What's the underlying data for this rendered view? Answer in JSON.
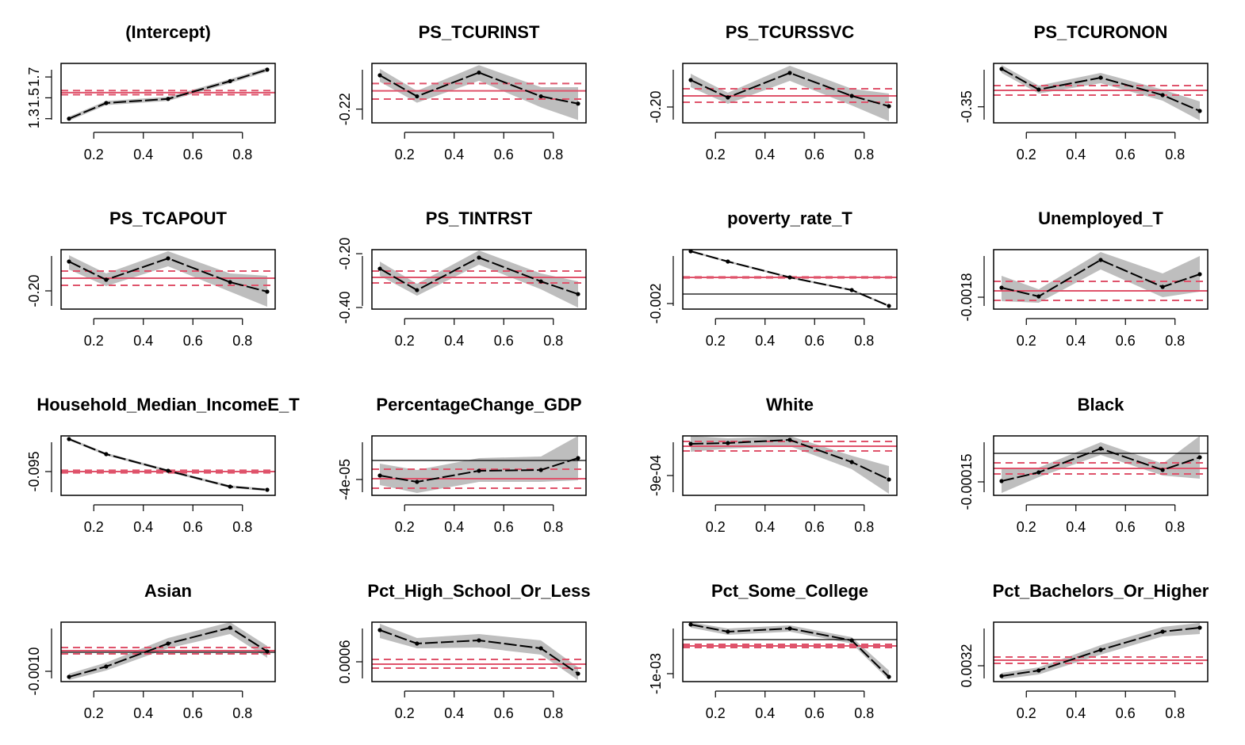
{
  "chart_data": [
    {
      "type": "line",
      "title": "(Intercept)",
      "x": [
        0.1,
        0.25,
        0.5,
        0.75,
        0.9
      ],
      "xlim": [
        0.068,
        0.932
      ],
      "xticks": [
        0.2,
        0.4,
        0.6,
        0.8
      ],
      "ylim": [
        1.26,
        1.83
      ],
      "yticks": [
        1.3,
        1.5,
        1.7
      ],
      "values": [
        1.3,
        1.45,
        1.49,
        1.66,
        1.77
      ],
      "lower": [
        1.28,
        1.43,
        1.47,
        1.64,
        1.75
      ],
      "upper": [
        1.32,
        1.47,
        1.51,
        1.68,
        1.79
      ],
      "ols": 1.55,
      "ols_lower": 1.53,
      "ols_upper": 1.57,
      "color": "#000000",
      "band_color": "#bebebe",
      "ols_color": "#df536b"
    },
    {
      "type": "line",
      "title": "PS_TCURINST",
      "x": [
        0.1,
        0.25,
        0.5,
        0.75,
        0.9
      ],
      "xlim": [
        0.068,
        0.932
      ],
      "xticks": [
        0.2,
        0.4,
        0.6,
        0.8
      ],
      "ylim": [
        -0.235,
        -0.17
      ],
      "yticks": [
        -0.22
      ],
      "values": [
        -0.183,
        -0.206,
        -0.18,
        -0.206,
        -0.214
      ],
      "lower": [
        -0.19,
        -0.213,
        -0.189,
        -0.218,
        -0.232
      ],
      "upper": [
        -0.176,
        -0.2,
        -0.172,
        -0.196,
        -0.196
      ],
      "ols": -0.2,
      "ols_lower": -0.209,
      "ols_upper": -0.192,
      "color": "#000000",
      "band_color": "#bebebe",
      "ols_color": "#df536b"
    },
    {
      "type": "line",
      "title": "PS_TCURSSVC",
      "x": [
        0.1,
        0.25,
        0.5,
        0.75,
        0.9
      ],
      "xlim": [
        0.068,
        0.932
      ],
      "xticks": [
        0.2,
        0.4,
        0.6,
        0.8
      ],
      "ylim": [
        -0.216,
        -0.156
      ],
      "yticks": [
        {
          "value": -0.2,
          "label": "-0.20"
        }
      ],
      "values": [
        -0.1728,
        -0.1904,
        -0.1656,
        -0.1888,
        -0.1992
      ],
      "lower": [
        -0.18,
        -0.1968,
        -0.1736,
        -0.1984,
        -0.2144
      ],
      "upper": [
        -0.1664,
        -0.1856,
        -0.1584,
        -0.1816,
        -0.1864
      ],
      "ols": -0.1888,
      "ols_lower": -0.1952,
      "ols_upper": -0.1816,
      "color": "#000000",
      "band_color": "#bebebe",
      "ols_color": "#df536b"
    },
    {
      "type": "line",
      "title": "PS_TCURONON",
      "x": [
        0.1,
        0.25,
        0.5,
        0.75,
        0.9
      ],
      "xlim": [
        0.068,
        0.932
      ],
      "xticks": [
        0.2,
        0.4,
        0.6,
        0.8
      ],
      "ylim": [
        -0.377,
        -0.277
      ],
      "yticks": [
        -0.35
      ],
      "values": [
        -0.2863,
        -0.321,
        -0.301,
        -0.3303,
        -0.357
      ],
      "lower": [
        -0.293,
        -0.3277,
        -0.3103,
        -0.3397,
        -0.373
      ],
      "upper": [
        -0.2797,
        -0.3143,
        -0.293,
        -0.321,
        -0.341
      ],
      "ols": -0.3223,
      "ols_lower": -0.3303,
      "ols_upper": -0.3143,
      "color": "#000000",
      "band_color": "#bebebe",
      "ols_color": "#df536b"
    },
    {
      "type": "line",
      "title": "PS_TCAPOUT",
      "x": [
        0.1,
        0.25,
        0.5,
        0.75,
        0.9
      ],
      "xlim": [
        0.068,
        0.932
      ],
      "xticks": [
        0.2,
        0.4,
        0.6,
        0.8
      ],
      "ylim": [
        -0.2184,
        -0.1584
      ],
      "yticks": [
        {
          "value": -0.2,
          "label": "-0.20"
        }
      ],
      "values": [
        -0.1704,
        -0.1888,
        -0.1672,
        -0.1912,
        -0.2008
      ],
      "lower": [
        -0.1784,
        -0.1952,
        -0.1752,
        -0.2008,
        -0.216
      ],
      "upper": [
        -0.164,
        -0.1824,
        -0.16,
        -0.1824,
        -0.1848
      ],
      "ols": -0.1872,
      "ols_lower": -0.1944,
      "ols_upper": -0.18,
      "color": "#000000",
      "band_color": "#bebebe",
      "ols_color": "#df536b"
    },
    {
      "type": "line",
      "title": "PS_TINTRST",
      "x": [
        0.1,
        0.25,
        0.5,
        0.75,
        0.9
      ],
      "xlim": [
        0.068,
        0.932
      ],
      "xticks": [
        0.2,
        0.4,
        0.6,
        0.8
      ],
      "ylim": [
        -0.406,
        -0.185
      ],
      "yticks": [
        {
          "value": -0.2,
          "label": "-0.20"
        },
        {
          "value": -0.4,
          "label": "-0.40"
        }
      ],
      "values": [
        -0.2558,
        -0.3355,
        -0.2145,
        -0.303,
        -0.3502
      ],
      "lower": [
        -0.2824,
        -0.3561,
        -0.241,
        -0.3325,
        -0.4004
      ],
      "upper": [
        -0.2293,
        -0.3119,
        -0.188,
        -0.2735,
        -0.303
      ],
      "ols": -0.2883,
      "ols_lower": -0.3089,
      "ols_upper": -0.2647,
      "color": "#000000",
      "band_color": "#bebebe",
      "ols_color": "#df536b"
    },
    {
      "type": "line",
      "title": "poverty_rate_T",
      "x": [
        0.1,
        0.25,
        0.5,
        0.75,
        0.9
      ],
      "xlim": [
        0.068,
        0.932
      ],
      "xticks": [
        0.2,
        0.4,
        0.6,
        0.8
      ],
      "ylim": [
        -0.00317,
        0.00933
      ],
      "yticks": [
        -0.002
      ],
      "values": [
        0.009,
        0.00683,
        0.0035,
        0.00083,
        -0.0025
      ],
      "lower": [
        0.0088,
        0.00663,
        0.0033,
        0.00063,
        -0.0027
      ],
      "upper": [
        0.0092,
        0.00703,
        0.0037,
        0.00103,
        -0.0023
      ],
      "ols": 0.0035,
      "ols_lower": 0.0034,
      "ols_upper": 0.0036,
      "color": "#000000",
      "band_color": "#bebebe",
      "ols_color": "#df536b"
    },
    {
      "type": "line",
      "title": "Unemployed_T",
      "x": [
        0.1,
        0.25,
        0.5,
        0.75,
        0.9
      ],
      "xlim": [
        0.068,
        0.932
      ],
      "xticks": [
        0.2,
        0.4,
        0.6,
        0.8
      ],
      "ylim": [
        -0.0019875,
        -0.00105
      ],
      "yticks": [
        -0.0018
      ],
      "values": [
        -0.00165,
        -0.0017875,
        -0.0012125,
        -0.0016375,
        -0.0014375
      ],
      "lower": [
        -0.0018625,
        -0.0018875,
        -0.0013625,
        -0.0018,
        -0.0017125
      ],
      "upper": [
        -0.0014625,
        -0.001675,
        -0.0010875,
        -0.001425,
        -0.00115
      ],
      "ols": -0.0017,
      "ols_lower": -0.00185,
      "ols_upper": -0.00155,
      "color": "#000000",
      "band_color": "#bebebe",
      "ols_color": "#df536b"
    },
    {
      "type": "line",
      "title": "Household_Median_IncomeE_T",
      "x": [
        0.1,
        0.25,
        0.5,
        0.75,
        0.9
      ],
      "xlim": [
        0.068,
        0.932
      ],
      "xticks": [
        0.2,
        0.4,
        0.6,
        0.8
      ],
      "ylim": [
        -0.11,
        -0.0725
      ],
      "yticks": [
        -0.095
      ],
      "values": [
        -0.0745,
        -0.084,
        -0.0945,
        -0.1045,
        -0.1065
      ],
      "lower": [
        -0.0753,
        -0.0848,
        -0.0953,
        -0.1053,
        -0.1073
      ],
      "upper": [
        -0.0737,
        -0.0832,
        -0.0937,
        -0.1037,
        -0.1057
      ],
      "ols": -0.095,
      "ols_lower": -0.0958,
      "ols_upper": -0.0942,
      "color": "#000000",
      "band_color": "#bebebe",
      "ols_color": "#df536b"
    },
    {
      "type": "line",
      "title": "PercentageChange_GDP",
      "x": [
        0.1,
        0.25,
        0.5,
        0.75,
        0.9
      ],
      "xlim": [
        0.068,
        0.932
      ],
      "xticks": [
        0.2,
        0.4,
        0.6,
        0.8
      ],
      "ylim": [
        -7.333e-05,
        5.167e-05
      ],
      "yticks": [
        {
          "value": -4e-05,
          "label": "-4e-05"
        }
      ],
      "values": [
        -3.167e-05,
        -4.5e-05,
        -2.167e-05,
        -2e-05,
        5e-06
      ],
      "lower": [
        -5.167e-05,
        -6.833e-05,
        -4.5e-05,
        -4.5e-05,
        -4.167e-05
      ],
      "upper": [
        -6.67e-06,
        -2e-05,
        5e-06,
        8.33e-06,
        5.167e-05
      ],
      "ols": -3.833e-05,
      "ols_lower": -5.833e-05,
      "ols_upper": -1.833e-05,
      "color": "#000000",
      "band_color": "#bebebe",
      "ols_color": "#df536b"
    },
    {
      "type": "line",
      "title": "White",
      "x": [
        0.1,
        0.25,
        0.5,
        0.75,
        0.9
      ],
      "xlim": [
        0.068,
        0.932
      ],
      "xticks": [
        0.2,
        0.4,
        0.6,
        0.8
      ],
      "ylim": [
        -0.0010389,
        -0.0006222
      ],
      "yticks": [
        {
          "value": -0.0009,
          "label": "-9e-04"
        }
      ],
      "values": [
        -0.0006778,
        -0.0006722,
        -0.00065,
        -0.0008056,
        -0.0009278
      ],
      "lower": [
        -0.0007333,
        -0.0007111,
        -0.0006944,
        -0.0008556,
        -0.0010278
      ],
      "upper": [
        -0.0006222,
        -0.0006389,
        -0.0006222,
        -0.0007611,
        -0.0008333
      ],
      "ols": -0.0006944,
      "ols_lower": -0.0007278,
      "ols_upper": -0.0006611,
      "color": "#000000",
      "band_color": "#bebebe",
      "ols_color": "#df536b"
    },
    {
      "type": "line",
      "title": "Black",
      "x": [
        0.1,
        0.25,
        0.5,
        0.75,
        0.9
      ],
      "xlim": [
        0.068,
        0.932
      ],
      "xticks": [
        0.2,
        0.4,
        0.6,
        0.8
      ],
      "ylim": [
        -0.00022083,
        9.167e-05
      ],
      "yticks": [
        -0.00015
      ],
      "values": [
        -0.00014583,
        -0.0001,
        2.5e-05,
        -8.75e-05,
        -2.083e-05
      ],
      "lower": [
        -0.00020833,
        -0.000125,
        -8.33e-06,
        -0.00011667,
        -0.00013333
      ],
      "upper": [
        -7.5e-05,
        -7.5e-05,
        5.833e-05,
        -5.417e-05,
        9.167e-05
      ],
      "ols": -7.917e-05,
      "ols_lower": -0.00010833,
      "ols_upper": -5e-05,
      "color": "#000000",
      "band_color": "#bebebe",
      "ols_color": "#df536b"
    },
    {
      "type": "line",
      "title": "Asian",
      "x": [
        0.1,
        0.25,
        0.5,
        0.75,
        0.9
      ],
      "xlim": [
        0.068,
        0.932
      ],
      "xticks": [
        0.2,
        0.4,
        0.6,
        0.8
      ],
      "ylim": [
        -0.0015417,
        0.0015833
      ],
      "yticks": [
        {
          "value": -0.001,
          "label": "-0.0010"
        }
      ],
      "values": [
        -0.0012917,
        -0.00075,
        0.0004583,
        0.0012917,
        4.17e-05
      ],
      "lower": [
        -0.0014583,
        -0.0009583,
        0.0002083,
        0.0009583,
        -0.0002917
      ],
      "upper": [
        -0.001125,
        -0.0005417,
        0.00075,
        0.0015833,
        0.0003333
      ],
      "ols": 8.33e-05,
      "ols_lower": -8.33e-05,
      "ols_upper": 0.00025,
      "color": "#000000",
      "band_color": "#bebebe",
      "ols_color": "#df536b"
    },
    {
      "type": "line",
      "title": "Pct_High_School_Or_Less",
      "x": [
        0.1,
        0.25,
        0.5,
        0.75,
        0.9
      ],
      "xlim": [
        0.068,
        0.932
      ],
      "xticks": [
        0.2,
        0.4,
        0.6,
        0.8
      ],
      "ylim": [
        0.00035,
        0.0011
      ],
      "yticks": [
        0.0006
      ],
      "values": [
        0.001,
        0.00083,
        0.00087,
        0.00077,
        0.00045
      ],
      "lower": [
        0.0009,
        0.00077,
        0.00078,
        0.00069,
        0.00037
      ],
      "upper": [
        0.00108,
        0.0009,
        0.00095,
        0.00087,
        0.00053
      ],
      "ols": 0.00057,
      "ols_lower": 0.00052,
      "ols_upper": 0.00063,
      "color": "#000000",
      "band_color": "#bebebe",
      "ols_color": "#df536b"
    },
    {
      "type": "line",
      "title": "Pct_Some_College",
      "x": [
        0.1,
        0.25,
        0.5,
        0.75,
        0.9
      ],
      "xlim": [
        0.068,
        0.932
      ],
      "xticks": [
        0.2,
        0.4,
        0.6,
        0.8
      ],
      "ylim": [
        -0.0012326,
        0.0005116
      ],
      "yticks": [
        {
          "value": -0.001,
          "label": "-1e-03"
        }
      ],
      "values": [
        0.0004419,
        0.0002326,
        0.0003256,
        -2.33e-05,
        -0.001093
      ],
      "lower": [
        0.0003488,
        0.0001395,
        0.0002326,
        -0.0001163,
        -0.001186
      ],
      "upper": [
        0.0005116,
        0.0003256,
        0.0004186,
        6.98e-05,
        -0.000907
      ],
      "ols": -0.000186,
      "ols_lower": -0.0002326,
      "ols_upper": -0.0001395,
      "color": "#000000",
      "band_color": "#bebebe",
      "ols_color": "#df536b"
    },
    {
      "type": "line",
      "title": "Pct_Bachelors_Or_Higher",
      "x": [
        0.1,
        0.25,
        0.5,
        0.75,
        0.9
      ],
      "xlim": [
        0.068,
        0.932
      ],
      "xticks": [
        0.2,
        0.4,
        0.6,
        0.8
      ],
      "ylim": [
        0.00304,
        0.00364
      ],
      "yticks": [
        0.0032
      ],
      "values": [
        0.003096,
        0.003152,
        0.00336,
        0.003544,
        0.003584
      ],
      "lower": [
        0.003064,
        0.003112,
        0.003312,
        0.003496,
        0.00352
      ],
      "upper": [
        0.003128,
        0.003184,
        0.003408,
        0.003592,
        0.003632
      ],
      "ols": 0.003256,
      "ols_lower": 0.003224,
      "ols_upper": 0.003288,
      "color": "#000000",
      "band_color": "#bebebe",
      "ols_color": "#df536b"
    }
  ]
}
